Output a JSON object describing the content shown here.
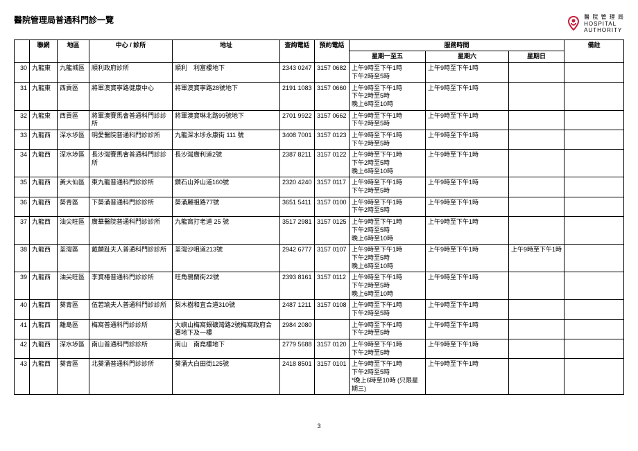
{
  "title": "醫院管理局普通科門診一覽",
  "logo": {
    "org_zh": "醫 院 管 理 局",
    "org_en1": "HOSPITAL",
    "org_en2": "AUTHORITY",
    "color": "#c41e3a"
  },
  "headers": {
    "network": "聯網",
    "area": "地區",
    "clinic": "中心 / 診所",
    "address": "地址",
    "enq_tel": "查詢電話",
    "appt_tel": "預約電話",
    "service_time": "服務時間",
    "mon_fri": "星期一至五",
    "sat": "星期六",
    "sun": "星期日",
    "remark": "備註"
  },
  "rows": [
    {
      "idx": "30",
      "net": "九龍東",
      "area": "九龍城區",
      "clinic": "順利政府診所",
      "addr": "順利　利富樓地下",
      "tel1": "2343 0247",
      "tel2": "3157 0682",
      "mf": "上午9時至下午1時\n下午2時至5時",
      "sat": "上午9時至下午1時",
      "sun": ""
    },
    {
      "idx": "31",
      "net": "九龍東",
      "area": "西貢區",
      "clinic": "將軍澳寶寧路健康中心",
      "addr": "將軍澳寶寧路28號地下",
      "tel1": "2191 1083",
      "tel2": "3157 0660",
      "mf": "上午9時至下午1時\n下午2時至5時\n晚上6時至10時",
      "sat": "上午9時至下午1時",
      "sun": ""
    },
    {
      "idx": "32",
      "net": "九龍東",
      "area": "西貢區",
      "clinic": "將軍澳賽馬會普通科門診診所",
      "addr": "將軍澳寶琳北路99號地下",
      "tel1": "2701 9922",
      "tel2": "3157 0662",
      "mf": "上午9時至下午1時\n下午2時至5時",
      "sat": "上午9時至下午1時",
      "sun": ""
    },
    {
      "idx": "33",
      "net": "九龍西",
      "area": "深水埗區",
      "clinic": "明愛醫院普通科門診診所",
      "addr": "九龍深水埗永康街 111 號",
      "tel1": "3408 7001",
      "tel2": "3157 0123",
      "mf": "上午9時至下午1時\n下午2時至5時",
      "sat": "上午9時至下午1時",
      "sun": ""
    },
    {
      "idx": "34",
      "net": "九龍西",
      "area": "深水埗區",
      "clinic": "長沙灣賽馬會普通科門診診所",
      "addr": "長沙灣廣利道2號",
      "tel1": "2387 8211",
      "tel2": "3157 0122",
      "mf": "上午9時至下午1時\n下午2時至5時\n晚上6時至10時",
      "sat": "上午9時至下午1時",
      "sun": ""
    },
    {
      "idx": "35",
      "net": "九龍西",
      "area": "黃大仙區",
      "clinic": "東九龍普通科門診診所",
      "addr": "鑽石山斧山道160號",
      "tel1": "2320 4240",
      "tel2": "3157 0117",
      "mf": "上午9時至下午1時\n下午2時至5時",
      "sat": "上午9時至下午1時",
      "sun": ""
    },
    {
      "idx": "36",
      "net": "九龍西",
      "area": "葵青區",
      "clinic": "下葵涌普通科門診診所",
      "addr": "葵涌麗祖路77號",
      "tel1": "3651 5411",
      "tel2": "3157 0100",
      "mf": "上午9時至下午1時\n下午2時至5時",
      "sat": "上午9時至下午1時",
      "sun": ""
    },
    {
      "idx": "37",
      "net": "九龍西",
      "area": "油尖旺區",
      "clinic": "廣華醫院普通科門診診所",
      "addr": "九龍窩打老道 25 號",
      "tel1": "3517 2981",
      "tel2": "3157 0125",
      "mf": "上午9時至下午1時\n下午2時至5時\n晚上6時至10時",
      "sat": "上午9時至下午1時",
      "sun": ""
    },
    {
      "idx": "38",
      "net": "九龍西",
      "area": "荃灣區",
      "clinic": "戴麟趾夫人普通科門診診所",
      "addr": "荃灣沙咀道213號",
      "tel1": "2942 6777",
      "tel2": "3157 0107",
      "mf": "上午9時至下午1時\n下午2時至5時\n晚上6時至10時",
      "sat": "上午9時至下午1時",
      "sun": "上午9時至下午1時"
    },
    {
      "idx": "39",
      "net": "九龍西",
      "area": "油尖旺區",
      "clinic": "李寶椿普通科門診診所",
      "addr": "旺角鴉蘭街22號",
      "tel1": "2393 8161",
      "tel2": "3157 0112",
      "mf": "上午9時至下午1時\n下午2時至5時\n晚上6時至10時",
      "sat": "上午9時至下午1時",
      "sun": ""
    },
    {
      "idx": "40",
      "net": "九龍西",
      "area": "葵青區",
      "clinic": "伍若瑜夫人普通科門診診所",
      "addr": "梨木樹和宜合道310號",
      "tel1": "2487 1211",
      "tel2": "3157 0108",
      "mf": "上午9時至下午1時\n下午2時至5時",
      "sat": "上午9時至下午1時",
      "sun": ""
    },
    {
      "idx": "41",
      "net": "九龍西",
      "area": "離島區",
      "clinic": "梅窩普通科門診診所",
      "addr": "大嶼山梅窩銀礦灣路2號梅窩政府合署地下及一樓",
      "tel1": "2984 2080",
      "tel2": "",
      "mf": "上午9時至下午1時\n下午2時至5時",
      "sat": "上午9時至下午1時",
      "sun": ""
    },
    {
      "idx": "42",
      "net": "九龍西",
      "area": "深水埗區",
      "clinic": "南山普通科門診診所",
      "addr": "南山　南堯樓地下",
      "tel1": "2779 5688",
      "tel2": "3157 0120",
      "mf": "上午9時至下午1時\n下午2時至5時",
      "sat": "上午9時至下午1時",
      "sun": ""
    },
    {
      "idx": "43",
      "net": "九龍西",
      "area": "葵青區",
      "clinic": "北葵涌普通科門診診所",
      "addr": "葵涌大白田街125號",
      "tel1": "2418 8501",
      "tel2": "3157 0101",
      "mf": "上午9時至下午1時\n下午2時至5時\n*晚上6時至10時 (只限星期三)",
      "sat": "上午9時至下午1時",
      "sun": ""
    }
  ],
  "page_num": "3"
}
